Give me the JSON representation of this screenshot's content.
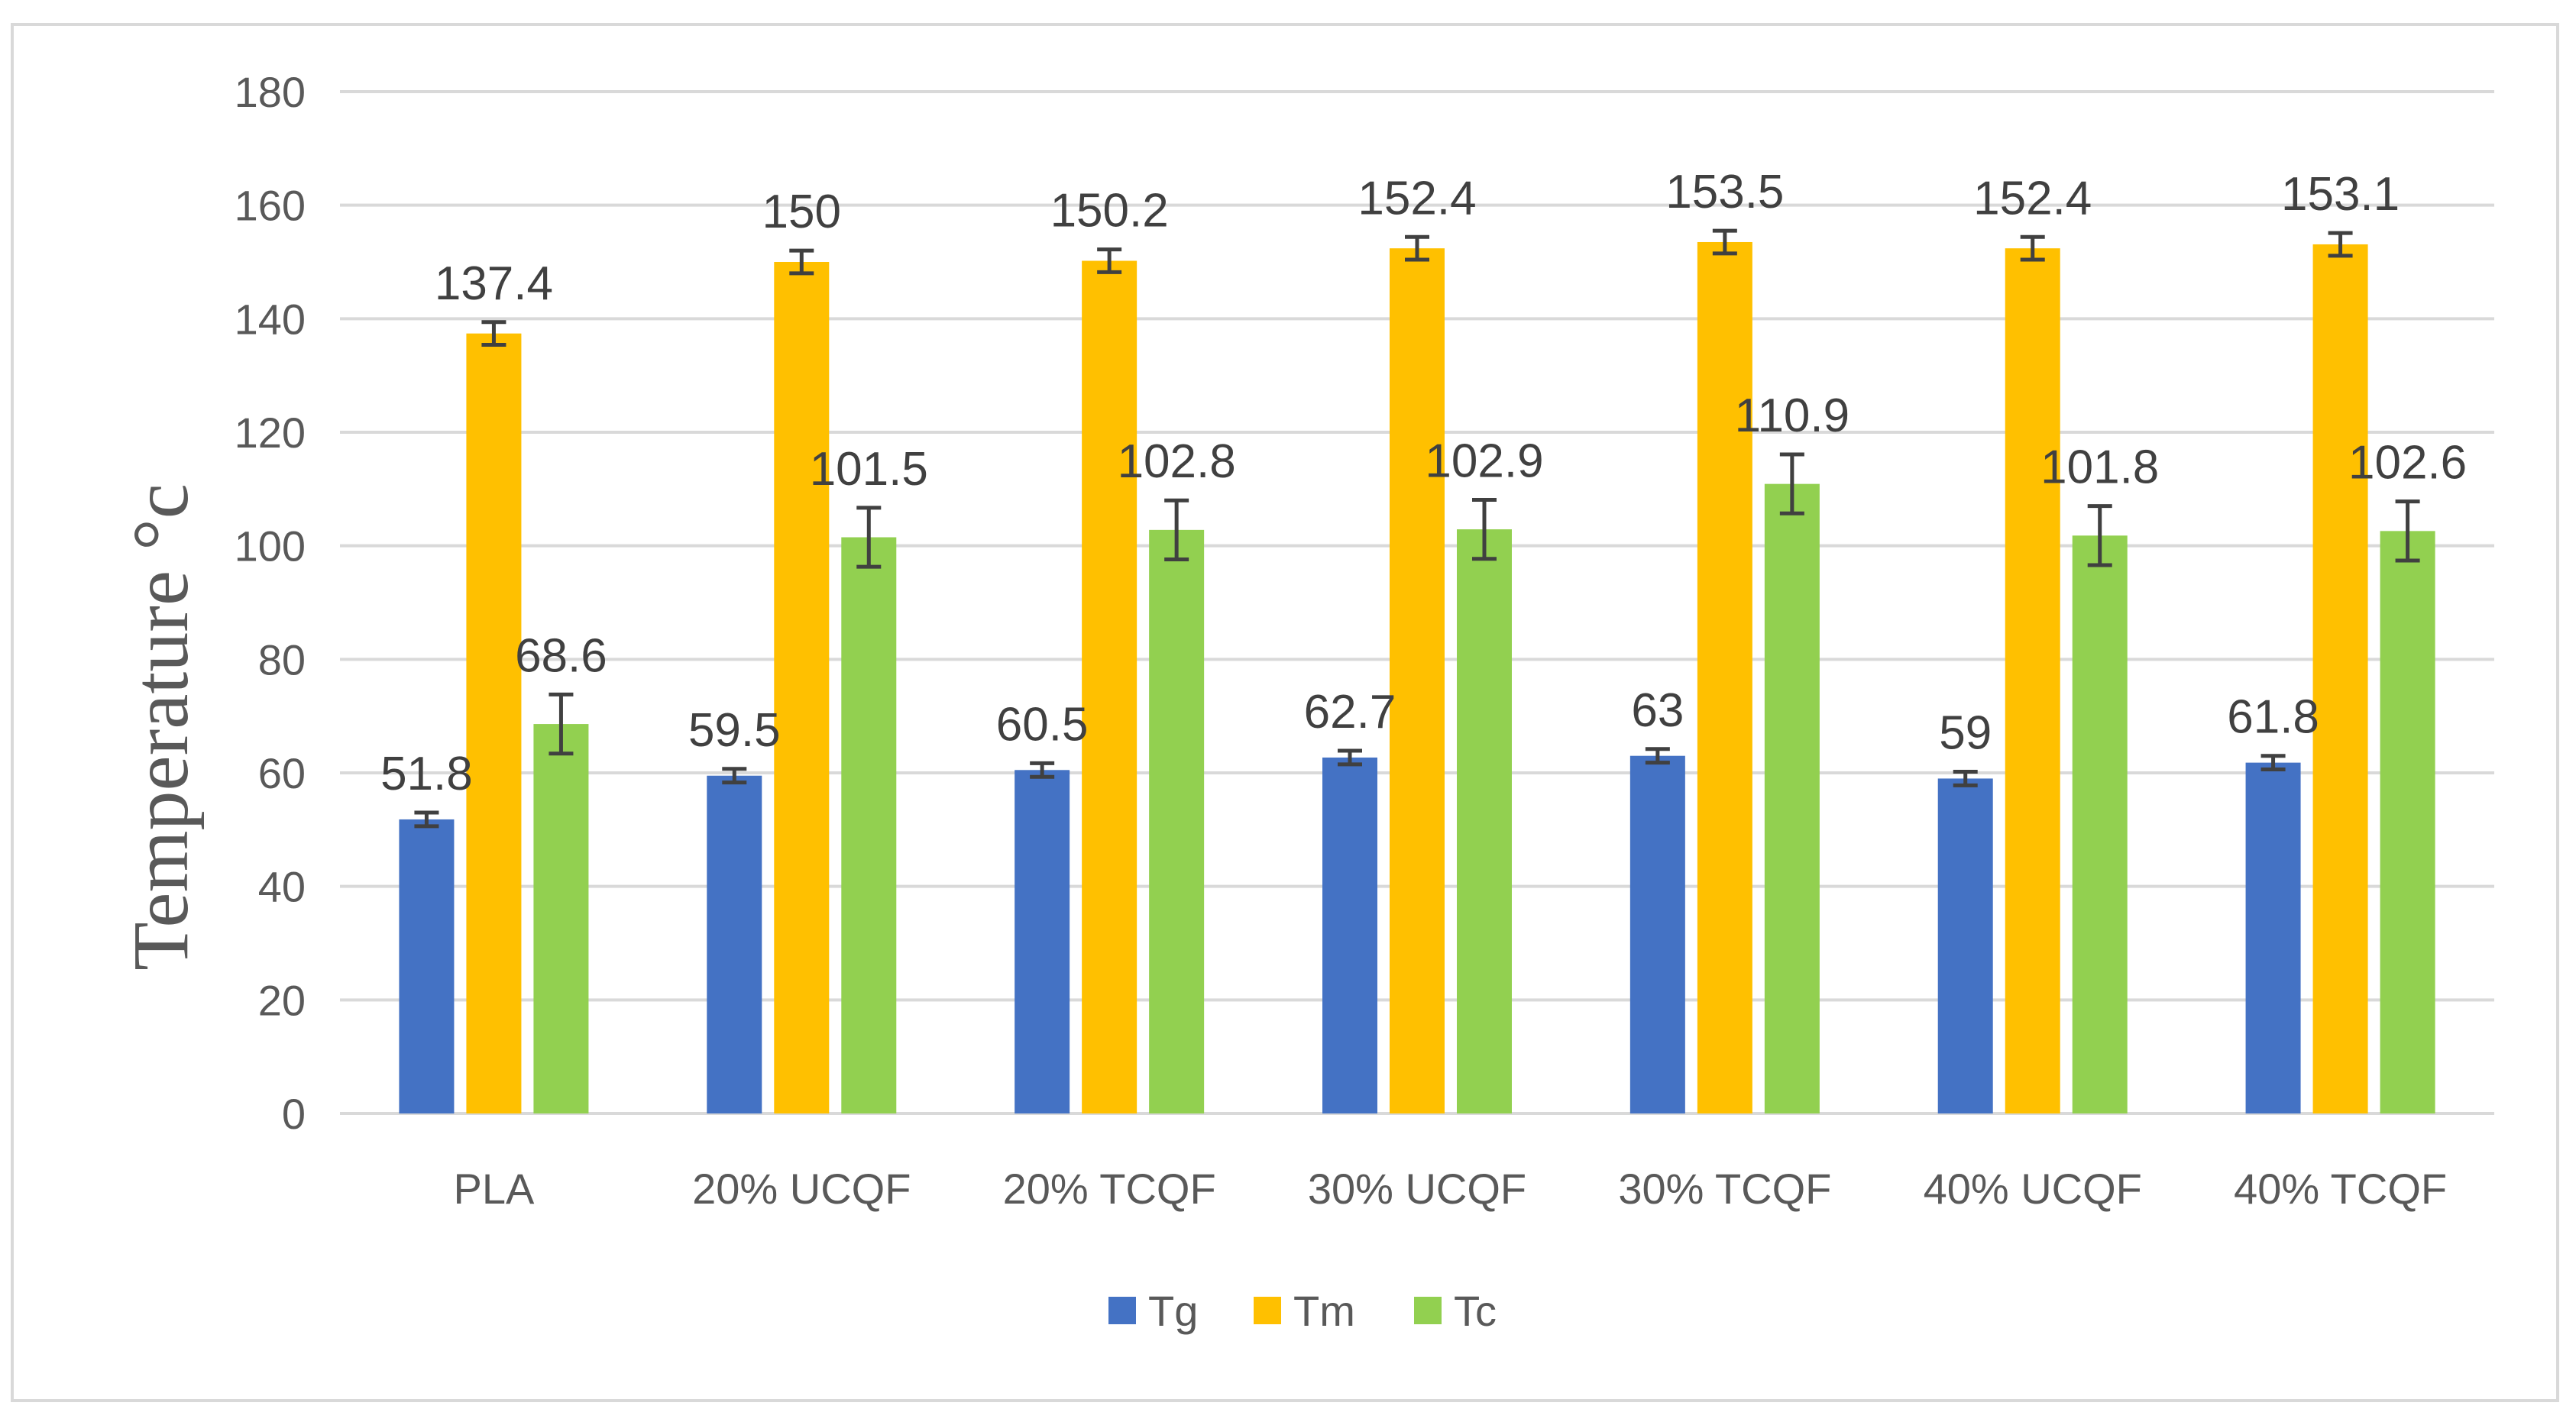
{
  "chart_data": {
    "type": "bar",
    "title": "",
    "xlabel": "",
    "ylabel": "Temperature °c",
    "ylim": [
      0,
      180
    ],
    "yticks": [
      0,
      20,
      40,
      60,
      80,
      100,
      120,
      140,
      160,
      180
    ],
    "grid": true,
    "legend_position": "bottom",
    "categories": [
      "PLA",
      "20% UCQF",
      "20% TCQF",
      "30% UCQF",
      "30% TCQF",
      "40% UCQF",
      "40% TCQF"
    ],
    "series": [
      {
        "name": "Tg",
        "color": "#4472c4",
        "values": [
          51.8,
          59.5,
          60.5,
          62.7,
          63,
          59,
          61.8
        ],
        "labels": [
          "51.8",
          "59.5",
          "60.5",
          "62.7",
          "63",
          "59",
          "61.8"
        ],
        "error": [
          1.2,
          1.2,
          1.2,
          1.2,
          1.2,
          1.2,
          1.2
        ]
      },
      {
        "name": "Tm",
        "color": "#ffc000",
        "values": [
          137.4,
          150,
          150.2,
          152.4,
          153.5,
          152.4,
          153.1
        ],
        "labels": [
          "137.4",
          "150",
          "150.2",
          "152.4",
          "153.5",
          "152.4",
          "153.1"
        ],
        "error": [
          2,
          2,
          2,
          2,
          2,
          2,
          2
        ]
      },
      {
        "name": "Tc",
        "color": "#92d050",
        "values": [
          68.6,
          101.5,
          102.8,
          102.9,
          110.9,
          101.8,
          102.6
        ],
        "labels": [
          "68.6",
          "101.5",
          "102.8",
          "102.9",
          "110.9",
          "101.8",
          "102.6"
        ],
        "error": [
          5.2,
          5.2,
          5.2,
          5.2,
          5.2,
          5.2,
          5.2
        ]
      }
    ],
    "colors": {
      "grid": "#d9d9d9",
      "axis": "#d9d9d9",
      "error_bar": "#404040",
      "frame": "#d9d9d9"
    }
  }
}
